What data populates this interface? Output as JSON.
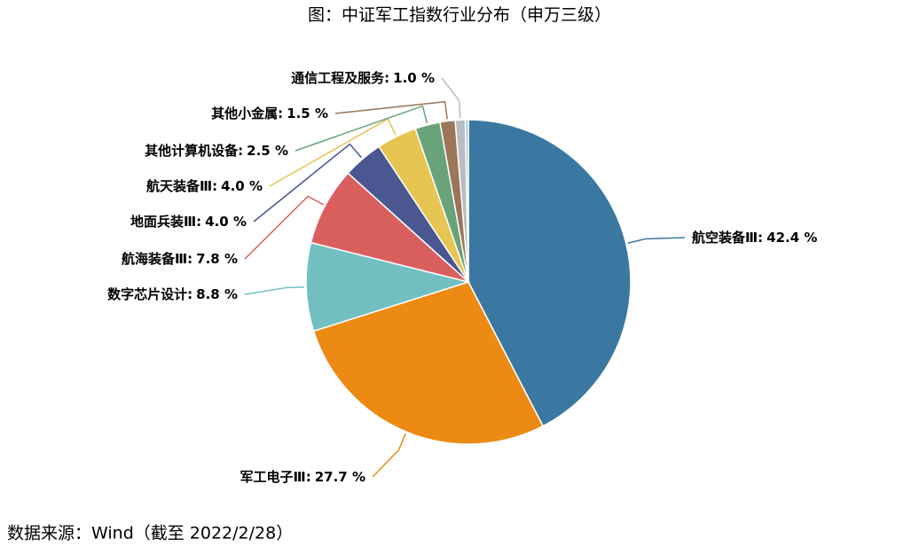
{
  "chart_data": {
    "type": "pie",
    "title": "图：中证军工指数行业分布（申万三级）",
    "source": "数据来源：Wind（截至 2022/2/28）",
    "categories": [
      "航空装备Ⅲ:",
      "军工电子Ⅲ:",
      "数字芯片设计:",
      "航海装备Ⅲ:",
      "地面兵装Ⅲ:",
      "航天装备Ⅲ:",
      "其他计算机设备:",
      "其他小金属:",
      "通信工程及服务:",
      null
    ],
    "values": [
      42.4,
      27.7,
      8.8,
      7.8,
      4.0,
      4.0,
      2.5,
      1.5,
      1.0,
      0.3
    ],
    "value_labels": [
      "42.4 %",
      "27.7 %",
      "8.8 %",
      "7.8 %",
      "4.0 %",
      "4.0 %",
      "2.5 %",
      "1.5 %",
      "1.0 %",
      null
    ],
    "colors": [
      "#3a78a2",
      "#ec8a14",
      "#72bfc1",
      "#d95f5e",
      "#4b5790",
      "#e6c553",
      "#6aa37a",
      "#9b7658",
      "#b9bcc0",
      "#a9c4da"
    ]
  }
}
